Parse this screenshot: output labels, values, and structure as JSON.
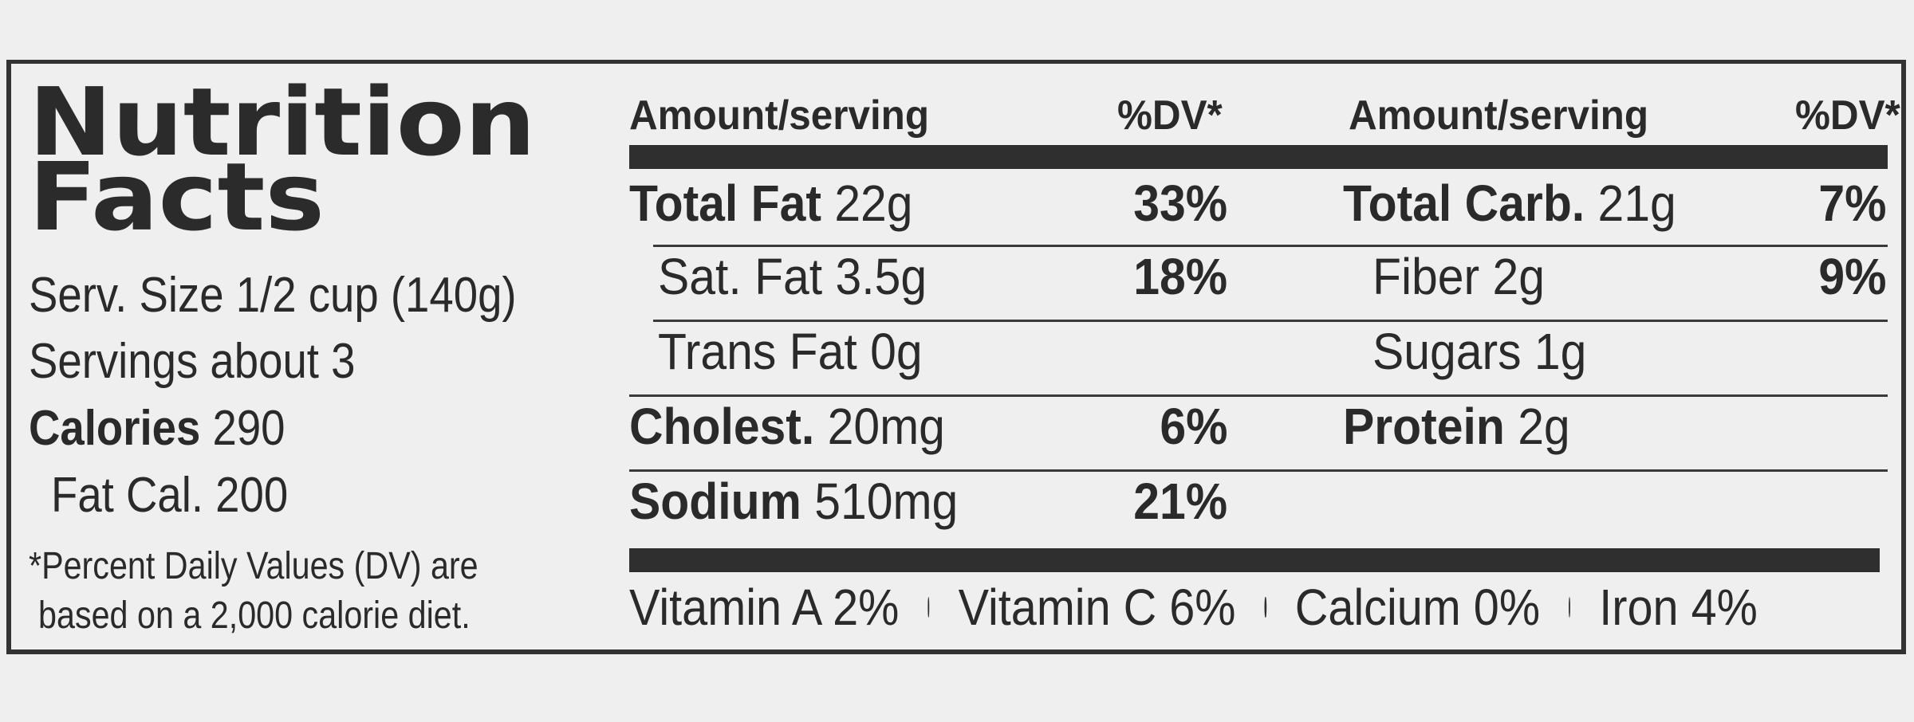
{
  "title": "Nutrition\nFacts",
  "serving": {
    "size": "Serv. Size 1/2 cup (140g)",
    "servings": "Servings about 3",
    "calories_label": "Calories",
    "calories_value": "290",
    "fat_cal": "Fat Cal. 200"
  },
  "footnote": {
    "line1": "*Percent Daily Values (DV) are",
    "line2": "based on a 2,000 calorie diet."
  },
  "headers": {
    "amount": "Amount/serving",
    "dv": "%DV*"
  },
  "left_col": [
    {
      "label": "Total Fat",
      "amount": "22g",
      "dv": "33%",
      "bold": true
    },
    {
      "label": "Sat. Fat 3.5g",
      "amount": "",
      "dv": "18%",
      "bold": false
    },
    {
      "label": "Trans Fat 0g",
      "amount": "",
      "dv": "",
      "bold": false
    },
    {
      "label": "Cholest.",
      "amount": "20mg",
      "dv": "6%",
      "bold": true
    },
    {
      "label": "Sodium",
      "amount": "510mg",
      "dv": "21%",
      "bold": true
    }
  ],
  "right_col": [
    {
      "label": "Total Carb.",
      "amount": "21g",
      "dv": "7%",
      "bold": true
    },
    {
      "label": "Fiber 2g",
      "amount": "",
      "dv": "9%",
      "bold": false
    },
    {
      "label": "Sugars 1g",
      "amount": "",
      "dv": "",
      "bold": false
    },
    {
      "label": "Protein",
      "amount": "2g",
      "dv": "",
      "bold": true
    }
  ],
  "vitamins": [
    "Vitamin A 2%",
    "Vitamin C 6%",
    "Calcium 0%",
    "Iron 4%"
  ]
}
